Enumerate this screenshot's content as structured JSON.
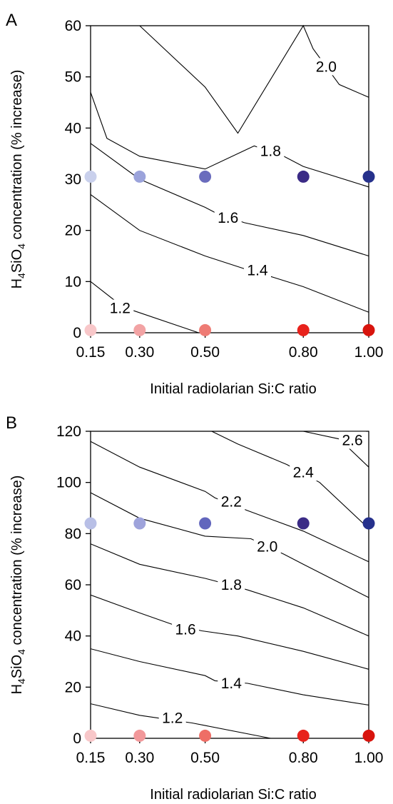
{
  "chart_data": [
    {
      "panel": "A",
      "type": "contour",
      "xlabel": "Initial radiolarian Si:C ratio",
      "ylabel": {
        "main": "H",
        "sub1": "4",
        "mid": "SiO",
        "sub2": "4",
        "rest": " concentration (% increase)"
      },
      "xlim": [
        0.15,
        1.0
      ],
      "ylim": [
        0,
        60
      ],
      "xticks": [
        0.15,
        0.3,
        0.5,
        0.8,
        1.0
      ],
      "xtick_labels": [
        "0.15",
        "0.30",
        "0.50",
        "0.80",
        "1.00"
      ],
      "yticks": [
        0,
        10,
        20,
        30,
        40,
        50,
        60
      ],
      "ytick_labels": [
        "0",
        "10",
        "20",
        "30",
        "40",
        "50",
        "60"
      ],
      "contours": [
        {
          "level": "1.2",
          "label": "1.2",
          "label_at": [
            0.24,
            4.8
          ],
          "points": [
            [
              0.15,
              10
            ],
            [
              0.25,
              5
            ],
            [
              0.48,
              0
            ]
          ]
        },
        {
          "level": "1.4",
          "label": "1.4",
          "label_at": [
            0.66,
            12.2
          ],
          "points": [
            [
              0.15,
              27
            ],
            [
              0.3,
              20
            ],
            [
              0.5,
              15
            ],
            [
              0.62,
              12.5
            ],
            [
              0.7,
              11
            ],
            [
              0.8,
              9
            ],
            [
              1.0,
              4
            ]
          ]
        },
        {
          "level": "1.6",
          "label": "1.6",
          "label_at": [
            0.57,
            22.5
          ],
          "points": [
            [
              0.15,
              37
            ],
            [
              0.3,
              30
            ],
            [
              0.5,
              24.5
            ],
            [
              0.53,
              23.5
            ],
            [
              0.62,
              21.5
            ],
            [
              0.8,
              19
            ],
            [
              1.0,
              15
            ]
          ]
        },
        {
          "level": "1.8",
          "label": "1.8",
          "label_at": [
            0.7,
            35.5
          ],
          "points": [
            [
              0.15,
              47
            ],
            [
              0.2,
              38
            ],
            [
              0.3,
              34.5
            ],
            [
              0.5,
              32
            ],
            [
              0.65,
              36.5
            ],
            [
              0.74,
              34.5
            ],
            [
              0.8,
              32.5
            ],
            [
              1.0,
              28.5
            ]
          ]
        },
        {
          "level": "2.0",
          "label": "2.0",
          "label_at": [
            0.87,
            52
          ],
          "points": [
            [
              0.3,
              60
            ],
            [
              0.5,
              48
            ],
            [
              0.6,
              39
            ],
            [
              0.8,
              60
            ],
            [
              0.83,
              55.5
            ],
            [
              0.91,
              48.5
            ],
            [
              1.0,
              46
            ]
          ]
        }
      ],
      "points": [
        {
          "x": 0.15,
          "y": 30.5,
          "color": "#c9d0ec"
        },
        {
          "x": 0.3,
          "y": 30.5,
          "color": "#9ba3db"
        },
        {
          "x": 0.5,
          "y": 30.5,
          "color": "#6a6cbd"
        },
        {
          "x": 0.8,
          "y": 30.5,
          "color": "#3b2b86"
        },
        {
          "x": 1.0,
          "y": 30.5,
          "color": "#26318c"
        },
        {
          "x": 0.15,
          "y": 0.5,
          "color": "#f8c7c9"
        },
        {
          "x": 0.3,
          "y": 0.5,
          "color": "#f2a3a4"
        },
        {
          "x": 0.5,
          "y": 0.5,
          "color": "#ee7b74"
        },
        {
          "x": 0.8,
          "y": 0.5,
          "color": "#e8221c"
        },
        {
          "x": 1.0,
          "y": 0.5,
          "color": "#d8140d"
        }
      ]
    },
    {
      "panel": "B",
      "type": "contour",
      "xlabel": "Initial radiolarian Si:C ratio",
      "ylabel": {
        "main": "H",
        "sub1": "4",
        "mid": "SiO",
        "sub2": "4",
        "rest": " concentration (% increase)"
      },
      "xlim": [
        0.15,
        1.0
      ],
      "ylim": [
        0,
        120
      ],
      "xticks": [
        0.15,
        0.3,
        0.5,
        0.8,
        1.0
      ],
      "xtick_labels": [
        "0.15",
        "0.30",
        "0.50",
        "0.80",
        "1.00"
      ],
      "yticks": [
        0,
        20,
        40,
        60,
        80,
        100,
        120
      ],
      "ytick_labels": [
        "0",
        "20",
        "40",
        "60",
        "80",
        "100",
        "120"
      ],
      "contours": [
        {
          "level": "1.2",
          "label": "1.2",
          "label_at": [
            0.4,
            8
          ],
          "points": [
            [
              0.15,
              13.5
            ],
            [
              0.3,
              9
            ],
            [
              0.46,
              6
            ],
            [
              0.5,
              5
            ],
            [
              0.7,
              0
            ]
          ]
        },
        {
          "level": "1.4",
          "label": "1.4",
          "label_at": [
            0.58,
            21.5
          ],
          "points": [
            [
              0.15,
              35
            ],
            [
              0.3,
              30
            ],
            [
              0.5,
              24.5
            ],
            [
              0.53,
              22.5
            ],
            [
              0.63,
              21.5
            ],
            [
              0.8,
              17
            ],
            [
              1.0,
              13
            ]
          ]
        },
        {
          "level": "1.6",
          "label": "1.6",
          "label_at": [
            0.44,
            42.5
          ],
          "points": [
            [
              0.15,
              56
            ],
            [
              0.3,
              49
            ],
            [
              0.4,
              44.5
            ],
            [
              0.49,
              42
            ],
            [
              0.6,
              40
            ],
            [
              0.8,
              34
            ],
            [
              1.0,
              27
            ]
          ]
        },
        {
          "level": "1.8",
          "label": "1.8",
          "label_at": [
            0.58,
            60
          ],
          "points": [
            [
              0.15,
              76
            ],
            [
              0.3,
              68
            ],
            [
              0.5,
              62.5
            ],
            [
              0.53,
              61.5
            ],
            [
              0.63,
              58
            ],
            [
              0.8,
              51
            ],
            [
              1.0,
              40
            ]
          ]
        },
        {
          "level": "2.0",
          "label": "2.0",
          "label_at": [
            0.69,
            75
          ],
          "points": [
            [
              0.15,
              96
            ],
            [
              0.3,
              86
            ],
            [
              0.5,
              79
            ],
            [
              0.64,
              78
            ],
            [
              0.74,
              72
            ],
            [
              0.8,
              68
            ],
            [
              1.0,
              55
            ]
          ]
        },
        {
          "level": "2.2",
          "label": "2.2",
          "label_at": [
            0.58,
            92.5
          ],
          "points": [
            [
              0.15,
              116
            ],
            [
              0.3,
              106
            ],
            [
              0.5,
              96.5
            ],
            [
              0.53,
              94
            ],
            [
              0.63,
              89
            ],
            [
              0.8,
              81
            ],
            [
              1.0,
              69
            ]
          ]
        },
        {
          "level": "2.4",
          "label": "2.4",
          "label_at": [
            0.8,
            104
          ],
          "points": [
            [
              0.52,
              120
            ],
            [
              0.6,
              115
            ],
            [
              0.75,
              107
            ],
            [
              0.85,
              100
            ],
            [
              1.0,
              82
            ]
          ]
        },
        {
          "level": "2.6",
          "label": "2.6",
          "label_at": [
            0.95,
            116.5
          ],
          "points": [
            [
              0.8,
              120
            ],
            [
              0.91,
              117
            ],
            [
              1.0,
              106
            ]
          ]
        }
      ],
      "points": [
        {
          "x": 0.15,
          "y": 84,
          "color": "#b8bfe6"
        },
        {
          "x": 0.3,
          "y": 84,
          "color": "#9ea3db"
        },
        {
          "x": 0.5,
          "y": 84,
          "color": "#6266bd"
        },
        {
          "x": 0.8,
          "y": 84,
          "color": "#3b2b86"
        },
        {
          "x": 1.0,
          "y": 84,
          "color": "#26318c"
        },
        {
          "x": 0.15,
          "y": 1,
          "color": "#f8c7c9"
        },
        {
          "x": 0.3,
          "y": 1,
          "color": "#f2989a"
        },
        {
          "x": 0.5,
          "y": 1,
          "color": "#ee6e66"
        },
        {
          "x": 0.8,
          "y": 1,
          "color": "#e8221c"
        },
        {
          "x": 1.0,
          "y": 1,
          "color": "#d8140d"
        }
      ]
    }
  ]
}
